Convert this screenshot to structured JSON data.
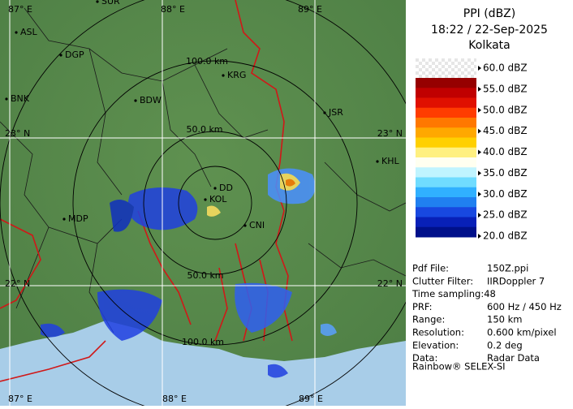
{
  "header": {
    "product": "PPI (dBZ)",
    "time": "18:22 / 22-Sep-2025",
    "site": "Kolkata"
  },
  "legend": {
    "labels": [
      "60.0 dBZ",
      "55.0 dBZ",
      "50.0 dBZ",
      "45.0 dBZ",
      "40.0 dBZ",
      "35.0 dBZ",
      "30.0 dBZ",
      "25.0 dBZ",
      "20.0 dBZ"
    ],
    "colors": [
      "#960000",
      "#c00000",
      "#e01000",
      "#ff3c00",
      "#ff7800",
      "#ffa800",
      "#ffd000",
      "#fff080",
      "#fffff0",
      "#c0f4ff",
      "#70dcff",
      "#30b0ff",
      "#2080f0",
      "#1848e0",
      "#0820b8",
      "#00108a"
    ]
  },
  "map": {
    "lon_labels": [
      "87° E",
      "88° E",
      "89° E"
    ],
    "lat_labels": [
      "23° N",
      "22° N"
    ],
    "range_labels": [
      "100.0 km",
      "50.0 km"
    ],
    "cities": [
      "SUR",
      "ASL",
      "DGP",
      "KRG",
      "BNK",
      "BDW",
      "JSR",
      "KHL",
      "MDP",
      "DD",
      "KOL",
      "CNI"
    ]
  },
  "info": {
    "rows": [
      [
        "Pdf File:",
        "150Z.ppi"
      ],
      [
        "Clutter Filter:",
        "IIRDoppler 7"
      ],
      [
        "Time sampling:48"
      ],
      [
        "PRF:",
        "600 Hz / 450 Hz"
      ],
      [
        "Range:",
        "150 km"
      ],
      [
        "Resolution:",
        "0.600 km/pixel"
      ],
      [
        "Elevation:",
        "0.2 deg"
      ],
      [
        "Data:",
        "Radar Data"
      ]
    ],
    "footer": "Rainbow® SELEX-SI"
  }
}
